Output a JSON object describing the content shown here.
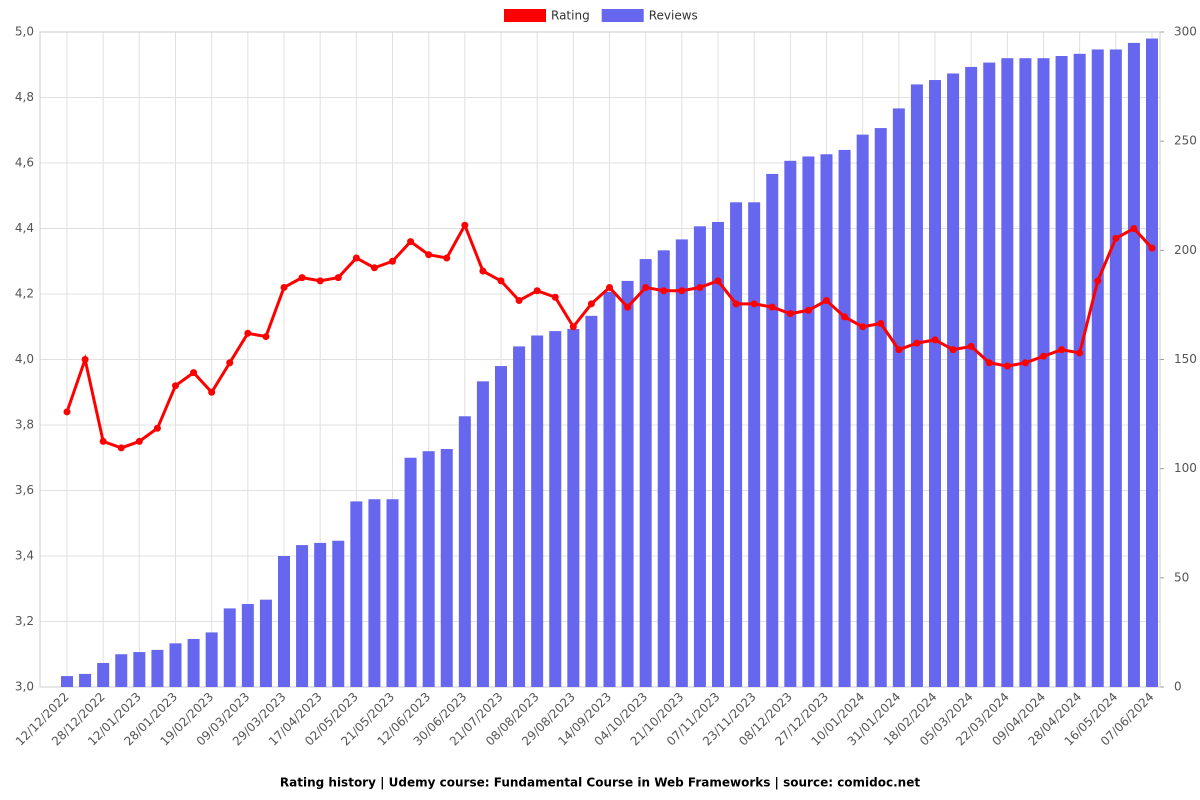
{
  "chart_data": {
    "type": "bar",
    "title": "Rating history | Udemy course: Fundamental Course in Web Frameworks | source: comidoc.net",
    "categories": [
      "12/12/2022",
      null,
      "28/12/2022",
      null,
      "12/01/2023",
      null,
      "28/01/2023",
      null,
      "19/02/2023",
      null,
      "09/03/2023",
      null,
      "29/03/2023",
      null,
      "17/04/2023",
      null,
      "02/05/2023",
      null,
      "21/05/2023",
      null,
      "12/06/2023",
      null,
      "30/06/2023",
      null,
      "21/07/2023",
      null,
      "08/08/2023",
      null,
      "29/08/2023",
      null,
      "14/09/2023",
      null,
      "04/10/2023",
      null,
      "21/10/2023",
      null,
      "07/11/2023",
      null,
      "23/11/2023",
      null,
      "08/12/2023",
      null,
      "27/12/2023",
      null,
      "10/01/2024",
      null,
      "31/01/2024",
      null,
      "18/02/2024",
      null,
      "05/03/2024",
      null,
      "22/03/2024",
      null,
      "09/04/2024",
      null,
      "28/04/2024",
      null,
      "16/05/2024",
      null,
      "07/06/2024"
    ],
    "series": [
      {
        "name": "Rating",
        "type": "line",
        "color": "#ff0000",
        "axis": "y",
        "values": [
          3.84,
          4.0,
          3.75,
          3.73,
          3.75,
          3.79,
          3.92,
          3.96,
          3.9,
          3.99,
          4.08,
          4.07,
          4.22,
          4.25,
          4.24,
          4.25,
          4.31,
          4.28,
          4.3,
          4.36,
          4.32,
          4.31,
          4.41,
          4.27,
          4.24,
          4.18,
          4.21,
          4.19,
          4.1,
          4.17,
          4.22,
          4.16,
          4.22,
          4.21,
          4.21,
          4.22,
          4.24,
          4.17,
          4.17,
          4.16,
          4.14,
          4.15,
          4.18,
          4.13,
          4.1,
          4.11,
          4.03,
          4.05,
          4.06,
          4.03,
          4.04,
          3.99,
          3.98,
          3.99,
          4.01,
          4.03,
          4.02,
          4.24,
          4.37,
          4.4,
          4.34
        ]
      },
      {
        "name": "Reviews",
        "type": "bar",
        "color": "#6666ee",
        "axis": "y2",
        "values": [
          5,
          6,
          11,
          15,
          16,
          17,
          20,
          22,
          25,
          36,
          38,
          40,
          60,
          65,
          66,
          67,
          85,
          86,
          86,
          105,
          108,
          109,
          124,
          140,
          147,
          156,
          161,
          163,
          164,
          170,
          181,
          186,
          196,
          200,
          205,
          211,
          213,
          222,
          222,
          235,
          241,
          243,
          244,
          246,
          253,
          256,
          265,
          276,
          278,
          281,
          284,
          286,
          288,
          288,
          288,
          289,
          290,
          292,
          292,
          295,
          297
        ]
      }
    ],
    "ylim": [
      3,
      5
    ],
    "yticks": [
      {
        "value": 3,
        "label": "3,0"
      },
      {
        "value": 3.2,
        "label": "3,2"
      },
      {
        "value": 3.4,
        "label": "3,4"
      },
      {
        "value": 3.6,
        "label": "3,6"
      },
      {
        "value": 3.8,
        "label": "3,8"
      },
      {
        "value": 4,
        "label": "4,0"
      },
      {
        "value": 4.2,
        "label": "4,2"
      },
      {
        "value": 4.4,
        "label": "4,4"
      },
      {
        "value": 4.6,
        "label": "4,6"
      },
      {
        "value": 4.8,
        "label": "4,8"
      },
      {
        "value": 5,
        "label": "5,0"
      }
    ],
    "y2lim": [
      0,
      300
    ],
    "y2ticks": [
      0,
      50,
      100,
      150,
      200,
      250,
      300
    ],
    "grid": true,
    "legend": "top"
  }
}
